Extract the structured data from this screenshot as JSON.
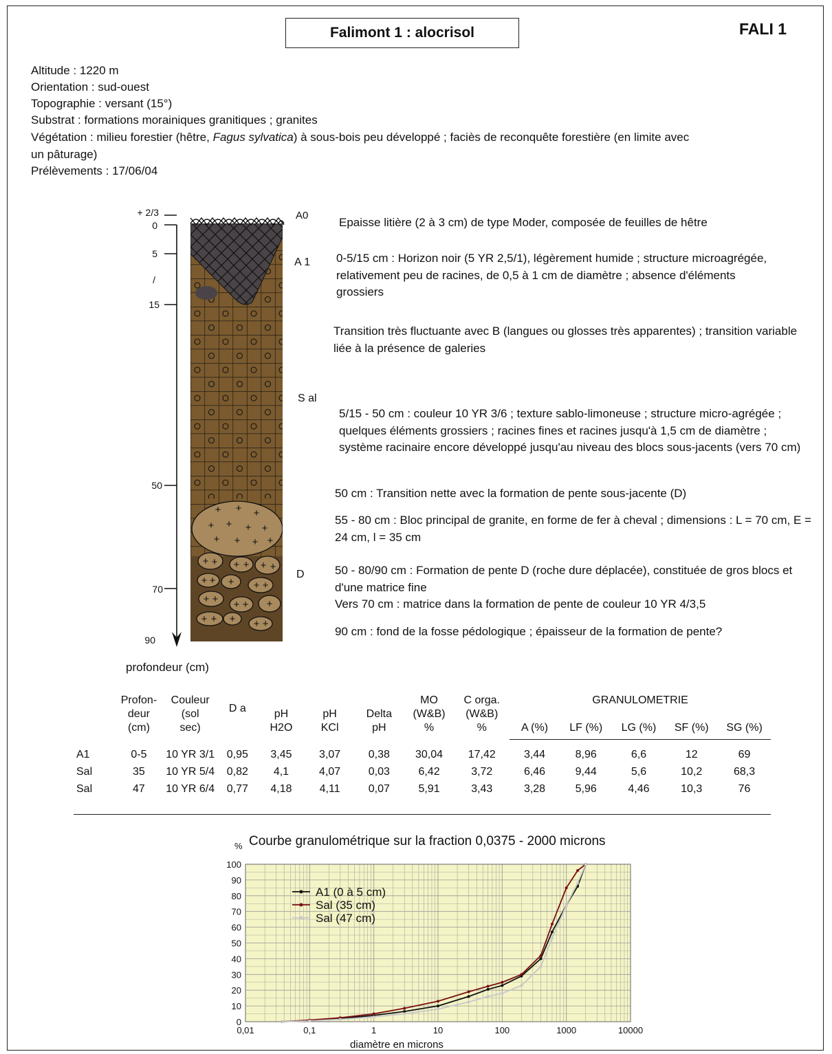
{
  "header": {
    "title": "Falimont 1 : alocrisol",
    "code": "FALI 1"
  },
  "site_info": {
    "altitude": "Altitude : 1220 m",
    "orientation": "Orientation : sud-ouest",
    "topographie": "Topographie : versant (15°)",
    "substrat": "Substrat : formations morainiques granitiques ; granites",
    "vegetation_pre": "Végétation : milieu forestier (hêtre, ",
    "vegetation_italic": "Fagus sylvatica",
    "vegetation_post": ") à sous-bois peu développé ; faciès de reconquête forestière (en limite avec",
    "vegetation_line2": "un pâturage)",
    "prelevements": "Prélèvements : 17/06/04"
  },
  "profile": {
    "depth_ticks": [
      "+ 2/3",
      "0",
      "5",
      "/",
      "15",
      "50",
      "70",
      "90"
    ],
    "axis_label": "profondeur (cm)",
    "horizons": [
      "A0",
      "A 1",
      "S al",
      "D"
    ],
    "descriptions": [
      "Epaisse litière (2 à 3 cm) de type Moder, composée de feuilles de hêtre",
      "0-5/15 cm : Horizon noir (5 YR 2,5/1), légèrement humide ; structure microagrégée, relativement peu de racines, de 0,5 à 1 cm de diamètre ; absence d'éléments grossiers",
      "Transition très fluctuante avec B (langues ou glosses très apparentes) ; transition variable liée à la présence de galeries",
      "5/15 - 50 cm : couleur 10 YR 3/6 ; texture sablo-limoneuse ; structure micro-agrégée ; quelques éléments grossiers ; racines fines et racines jusqu'à 1,5 cm de diamètre ; système racinaire encore développé jusqu'au niveau des blocs sous-jacents (vers 70 cm)",
      "50 cm : Transition nette avec la formation de pente sous-jacente (D)",
      "55 - 80 cm : Bloc principal de granite, en forme de fer à cheval ; dimensions : L = 70 cm, E = 24 cm, l = 35 cm",
      "50 - 80/90 cm : Formation de pente D (roche dure déplacée), constituée de gros blocs et d'une matrice fine",
      "Vers 70 cm : matrice dans la formation de pente de couleur 10 YR 4/3,5",
      "90 cm : fond de la fosse pédologique ; épaisseur de la formation de pente?"
    ],
    "colors": {
      "humus": "#4a4448",
      "horizon_s": "#7a5a2e",
      "granite": "#a88a5e",
      "stone_bg": "#5e4526"
    }
  },
  "table": {
    "headers": {
      "profondeur": [
        "Profon-",
        "deur",
        "(cm)"
      ],
      "couleur": [
        "Couleur",
        "(sol",
        "sec)"
      ],
      "da": [
        "D a"
      ],
      "ph_h2o": [
        "pH",
        "H2O"
      ],
      "ph_kcl": [
        "pH",
        "KCl"
      ],
      "delta_ph": [
        "Delta",
        "pH"
      ],
      "mo": [
        "MO",
        "(W&B)",
        "%"
      ],
      "c_orga": [
        "C orga.",
        "(W&B)",
        "%"
      ],
      "granulometrie": "GRANULOMETRIE",
      "a": "A (%)",
      "lf": "LF (%)",
      "lg": "LG (%)",
      "sf": "SF (%)",
      "sg": "SG (%)"
    },
    "rows": [
      [
        "A1",
        "0-5",
        "10 YR 3/1",
        "0,95",
        "3,45",
        "3,07",
        "0,38",
        "30,04",
        "17,42",
        "3,44",
        "8,96",
        "6,6",
        "12",
        "69"
      ],
      [
        "Sal",
        "35",
        "10 YR 5/4",
        "0,82",
        "4,1",
        "4,07",
        "0,03",
        "6,42",
        "3,72",
        "6,46",
        "9,44",
        "5,6",
        "10,2",
        "68,3"
      ],
      [
        "Sal",
        "47",
        "10 YR 6/4",
        "0,77",
        "4,18",
        "4,11",
        "0,07",
        "5,91",
        "3,43",
        "3,28",
        "5,96",
        "4,46",
        "10,3",
        "76"
      ]
    ]
  },
  "chart_data": {
    "type": "line",
    "title": "Courbe granulométrique sur la fraction 0,0375 - 2000 microns",
    "xlabel": "diamètre en microns",
    "ylabel": "%",
    "xscale": "log",
    "xlim": [
      0.01,
      10000
    ],
    "ylim": [
      0,
      100
    ],
    "x_ticks": [
      "0,01",
      "0,1",
      "1",
      "10",
      "100",
      "1000",
      "10000"
    ],
    "y_ticks": [
      "0",
      "10",
      "20",
      "30",
      "40",
      "50",
      "60",
      "70",
      "80",
      "90",
      "100"
    ],
    "grid": true,
    "legend_position": "top-left",
    "background": "#f4f4c6",
    "series": [
      {
        "name": "A1 (0 à 5 cm)",
        "color": "#111111",
        "x": [
          0.0375,
          0.1,
          0.3,
          1,
          3,
          10,
          30,
          60,
          100,
          200,
          400,
          600,
          1000,
          1500,
          2000
        ],
        "y": [
          0,
          0.7,
          2,
          4,
          6.5,
          10,
          16,
          20.5,
          23,
          29,
          40,
          57,
          74,
          86,
          100
        ]
      },
      {
        "name": "Sal (35 cm)",
        "color": "#7a1010",
        "x": [
          0.0375,
          0.1,
          0.3,
          1,
          3,
          10,
          30,
          60,
          100,
          200,
          400,
          600,
          1000,
          1500,
          2000
        ],
        "y": [
          0,
          1,
          2.5,
          5,
          8.5,
          13,
          19,
          22.5,
          25,
          30,
          42,
          62,
          85,
          96,
          100
        ]
      },
      {
        "name": "Sal (47 cm)",
        "color": "#c8c8c8",
        "x": [
          0.0375,
          0.1,
          0.3,
          1,
          3,
          10,
          30,
          60,
          100,
          200,
          400,
          600,
          1000,
          1500,
          2000
        ],
        "y": [
          0,
          0.5,
          1.5,
          3,
          5,
          8,
          12.5,
          16,
          18,
          23,
          35,
          53,
          74,
          88,
          100
        ]
      }
    ]
  }
}
